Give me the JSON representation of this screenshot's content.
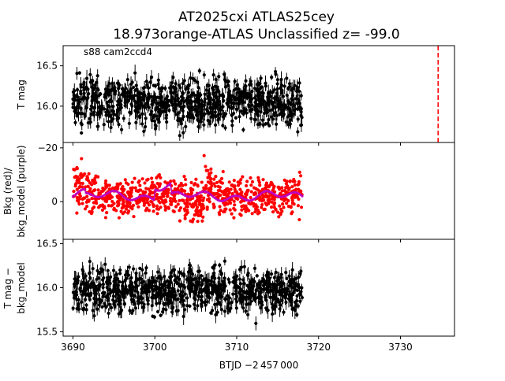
{
  "figure": {
    "title_line1": "AT2025cxi  ATLAS25cey",
    "title_line2": "18.973orange-ATLAS Unclassified z= -99.0",
    "xlabel": "BTJD −2 457 000"
  },
  "chart_data": [
    {
      "type": "scatter",
      "panel": "top",
      "ylabel": "T mag",
      "annotation": "s88 cam2ccd4",
      "xlim": [
        3688.8,
        3736.6
      ],
      "ylim": [
        16.75,
        15.55
      ],
      "y_inverted": true,
      "yticks": [
        16.0,
        16.5
      ],
      "ytick_labels": [
        "16.0",
        "16.5"
      ],
      "series": [
        {
          "color": "#000000",
          "x_range": [
            3690.0,
            3718.0
          ],
          "y_center": 16.05,
          "y_scatter": 0.2,
          "error_bars": true
        }
      ],
      "vline": {
        "x": 3734.6,
        "color": "#ff0000",
        "style": "dashed"
      }
    },
    {
      "type": "scatter",
      "panel": "middle",
      "ylabel_line1": "Bkg (red)/",
      "ylabel_line2": "bkg_model (purple)",
      "xlim": [
        3688.8,
        3736.6
      ],
      "ylim": [
        -22,
        14
      ],
      "yticks": [
        -20,
        0
      ],
      "ytick_labels": [
        "−20",
        "0"
      ],
      "series": [
        {
          "color": "#ff0000",
          "x_range": [
            3690.0,
            3718.0
          ],
          "y_center": -2,
          "y_scatter": 5,
          "features": [
            "dip near 3691",
            "bump near 3705",
            "dip near 3706"
          ]
        },
        {
          "color": "#bf00bf",
          "x_range": [
            3690.0,
            3718.0
          ],
          "y_center": -2,
          "y_scatter": 1.5,
          "line": true
        }
      ]
    },
    {
      "type": "scatter",
      "panel": "bottom",
      "ylabel_line1": "T mag −",
      "ylabel_line2": "bkg_model",
      "xlim": [
        3688.8,
        3736.6
      ],
      "ylim": [
        16.55,
        15.45
      ],
      "y_inverted": true,
      "yticks": [
        15.5,
        16.0,
        16.5
      ],
      "ytick_labels": [
        "15.5",
        "16.0",
        "16.5"
      ],
      "xticks": [
        3690,
        3700,
        3710,
        3720,
        3730
      ],
      "xtick_labels": [
        "3690",
        "3700",
        "3710",
        "3720",
        "3730"
      ],
      "series": [
        {
          "color": "#000000",
          "x_range": [
            3690.0,
            3718.0
          ],
          "y_center": 15.97,
          "y_scatter": 0.17,
          "error_bars": true
        }
      ]
    }
  ]
}
